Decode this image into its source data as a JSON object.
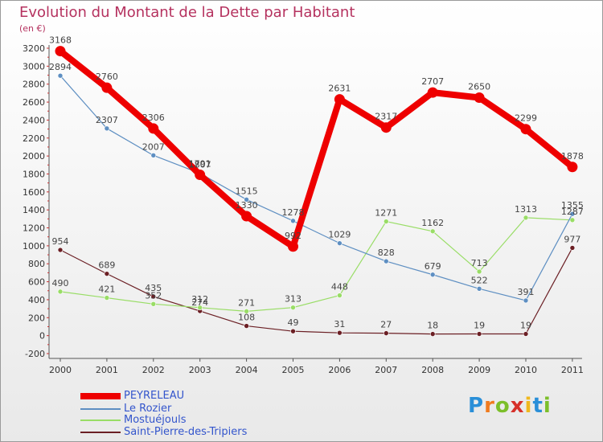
{
  "chart_data": {
    "type": "line",
    "title": "Evolution du Montant de la Dette par Habitant",
    "unit_label": "(en €)",
    "categories": [
      "2000",
      "2001",
      "2002",
      "2003",
      "2004",
      "2005",
      "2006",
      "2007",
      "2008",
      "2009",
      "2010",
      "2011"
    ],
    "ylim": [
      -200,
      3200
    ],
    "yticks": [
      -200,
      0,
      200,
      400,
      600,
      800,
      1000,
      1200,
      1400,
      1600,
      1800,
      2000,
      2200,
      2400,
      2600,
      2800,
      3000,
      3200
    ],
    "grid": false,
    "legend_position": "bottom-left",
    "series": [
      {
        "name": "PEYRELEAU",
        "color": "#ee0000",
        "values": [
          3168,
          2760,
          2306,
          1791,
          1330,
          992,
          2631,
          2317,
          2707,
          2650,
          2299,
          1878
        ]
      },
      {
        "name": "Le Rozier",
        "color": "#5e8fc2",
        "values": [
          2894,
          2307,
          2007,
          1807,
          1515,
          1278,
          1029,
          828,
          679,
          522,
          391,
          1355
        ]
      },
      {
        "name": "Mostuéjouls",
        "color": "#99dd66",
        "values": [
          490,
          421,
          352,
          312,
          271,
          313,
          448,
          1271,
          1162,
          713,
          1313,
          1287
        ]
      },
      {
        "name": "Saint-Pierre-des-Tripiers",
        "color": "#6b1f24",
        "values": [
          954,
          689,
          435,
          274,
          108,
          49,
          31,
          27,
          18,
          19,
          19,
          977
        ]
      }
    ]
  },
  "logo": {
    "text": "Proxiti"
  }
}
